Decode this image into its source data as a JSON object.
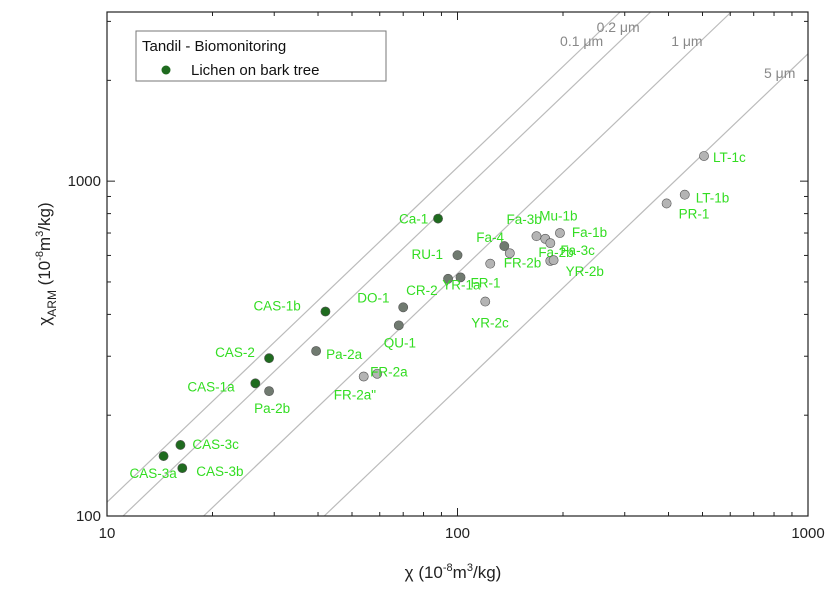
{
  "chart_data": {
    "type": "scatter",
    "xscale": "log",
    "yscale": "log",
    "xlim": [
      10,
      1000
    ],
    "ylim": [
      100,
      3200
    ],
    "x_ticks": [
      10,
      100,
      1000
    ],
    "x_tick_labels": [
      "10",
      "100",
      "1000"
    ],
    "y_ticks": [
      100,
      1000
    ],
    "y_tick_labels": [
      "100",
      "1000"
    ],
    "xlabel_parts": {
      "main": "χ (10",
      "exp1": "-8",
      "mid": "m",
      "exp2": "3",
      "end": "/kg)"
    },
    "ylabel_parts": {
      "main": "χ",
      "sub": "ARM",
      "mid": " (10",
      "exp1": "-8",
      "mid2": "m",
      "exp2": "3",
      "end": "/kg)"
    },
    "grid": false,
    "legend": {
      "position": "top-left",
      "title": "Tandil - Biomonitoring",
      "entry": "Lichen on bark tree",
      "marker_color": "#1f6b1f"
    },
    "colors": {
      "dark_marker": "#1f6b1f",
      "mid_marker": "#707a70",
      "light_marker": "#b4b4b4",
      "label": "#33dd22",
      "grain_line": "#bbbbbb",
      "grain_label": "#888888"
    },
    "grain_size_lines": [
      {
        "label": "0.1 μm",
        "ratio": 11.0
      },
      {
        "label": "0.2 μm",
        "ratio": 9.0
      },
      {
        "label": "1 μm",
        "ratio": 5.3
      },
      {
        "label": "5 μm",
        "ratio": 2.4
      }
    ],
    "points": [
      {
        "label": "CAS-3a",
        "x": 14.5,
        "y": 151,
        "tone": "dark"
      },
      {
        "label": "CAS-3c",
        "x": 16.2,
        "y": 163,
        "tone": "dark"
      },
      {
        "label": "CAS-3b",
        "x": 16.4,
        "y": 139,
        "tone": "dark"
      },
      {
        "label": "CAS-1a",
        "x": 26.5,
        "y": 249,
        "tone": "dark"
      },
      {
        "label": "CAS-2",
        "x": 29,
        "y": 296,
        "tone": "dark"
      },
      {
        "label": "Pa-2b",
        "x": 29,
        "y": 236,
        "tone": "mid"
      },
      {
        "label": "Pa-2a",
        "x": 39.5,
        "y": 311,
        "tone": "mid"
      },
      {
        "label": "CAS-1b",
        "x": 42,
        "y": 408,
        "tone": "dark"
      },
      {
        "label": "FR-2a\"",
        "x": 54,
        "y": 261,
        "tone": "light"
      },
      {
        "label": "FR-2a",
        "x": 59,
        "y": 266,
        "tone": "light"
      },
      {
        "label": "QU-1",
        "x": 68,
        "y": 371,
        "tone": "mid"
      },
      {
        "label": "DO-1",
        "x": 70,
        "y": 420,
        "tone": "mid"
      },
      {
        "label": "Ca-1",
        "x": 88,
        "y": 773,
        "tone": "dark"
      },
      {
        "label": "CR-2",
        "x": 94,
        "y": 511,
        "tone": "mid"
      },
      {
        "label": "FR-1",
        "x": 102,
        "y": 516,
        "tone": "mid"
      },
      {
        "label": "RU-1",
        "x": 100,
        "y": 601,
        "tone": "mid"
      },
      {
        "label": "YR-1a",
        "x": 124,
        "y": 567,
        "tone": "light"
      },
      {
        "label": "YR-2c",
        "x": 120,
        "y": 437,
        "tone": "light"
      },
      {
        "label": "Fa-4",
        "x": 136,
        "y": 640,
        "tone": "mid"
      },
      {
        "label": "FR-2b",
        "x": 141,
        "y": 609,
        "tone": "light"
      },
      {
        "label": "Fa-3b",
        "x": 168,
        "y": 685,
        "tone": "light"
      },
      {
        "label": "Mu-1b",
        "x": 178,
        "y": 673,
        "tone": "light"
      },
      {
        "label": "Fa-1b",
        "x": 196,
        "y": 700,
        "tone": "light"
      },
      {
        "label": "Fa-3c",
        "x": 184,
        "y": 653,
        "tone": "light"
      },
      {
        "label": "Fa-2b",
        "x": 184,
        "y": 578,
        "tone": "light"
      },
      {
        "label": "YR-2b",
        "x": 188,
        "y": 581,
        "tone": "light"
      },
      {
        "label": "PR-1",
        "x": 395,
        "y": 858,
        "tone": "light"
      },
      {
        "label": "LT-1b",
        "x": 445,
        "y": 911,
        "tone": "light"
      },
      {
        "label": "LT-1c",
        "x": 505,
        "y": 1189,
        "tone": "light"
      }
    ]
  }
}
